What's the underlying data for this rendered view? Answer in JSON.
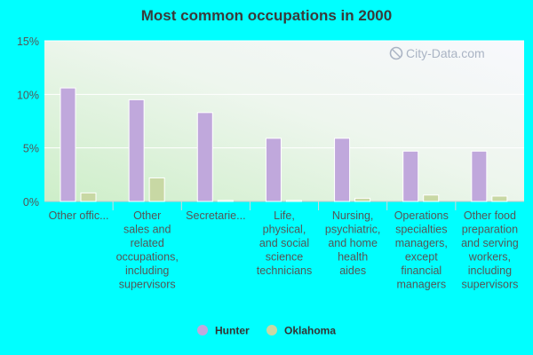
{
  "chart_data": {
    "type": "bar",
    "title": "Most common occupations in 2000",
    "categories": [
      [
        "Other offic..."
      ],
      [
        "Other",
        "sales and",
        "related",
        "occupations,",
        "including",
        "supervisors"
      ],
      [
        "Secretarie..."
      ],
      [
        "Life,",
        "physical,",
        "and social",
        "science",
        "technicians"
      ],
      [
        "Nursing,",
        "psychiatric,",
        "and home",
        "health",
        "aides"
      ],
      [
        "Operations",
        "specialties",
        "managers,",
        "except",
        "financial",
        "managers"
      ],
      [
        "Other food",
        "preparation",
        "and serving",
        "workers,",
        "including",
        "supervisors"
      ]
    ],
    "series": [
      {
        "name": "Hunter",
        "color": "#c0a8dc",
        "values": [
          10.6,
          9.5,
          8.3,
          5.9,
          5.9,
          4.7,
          4.7
        ]
      },
      {
        "name": "Oklahoma",
        "color": "#c8d8a4",
        "values": [
          0.8,
          2.2,
          0.1,
          0.1,
          0.3,
          0.6,
          0.5
        ]
      }
    ],
    "ylim": [
      0,
      15
    ],
    "yticks": [
      0,
      5,
      10,
      15
    ],
    "ytick_labels": [
      "0%",
      "5%",
      "10%",
      "15%"
    ],
    "grid": true,
    "legend_position": "bottom-center"
  },
  "watermark": "City-Data.com"
}
